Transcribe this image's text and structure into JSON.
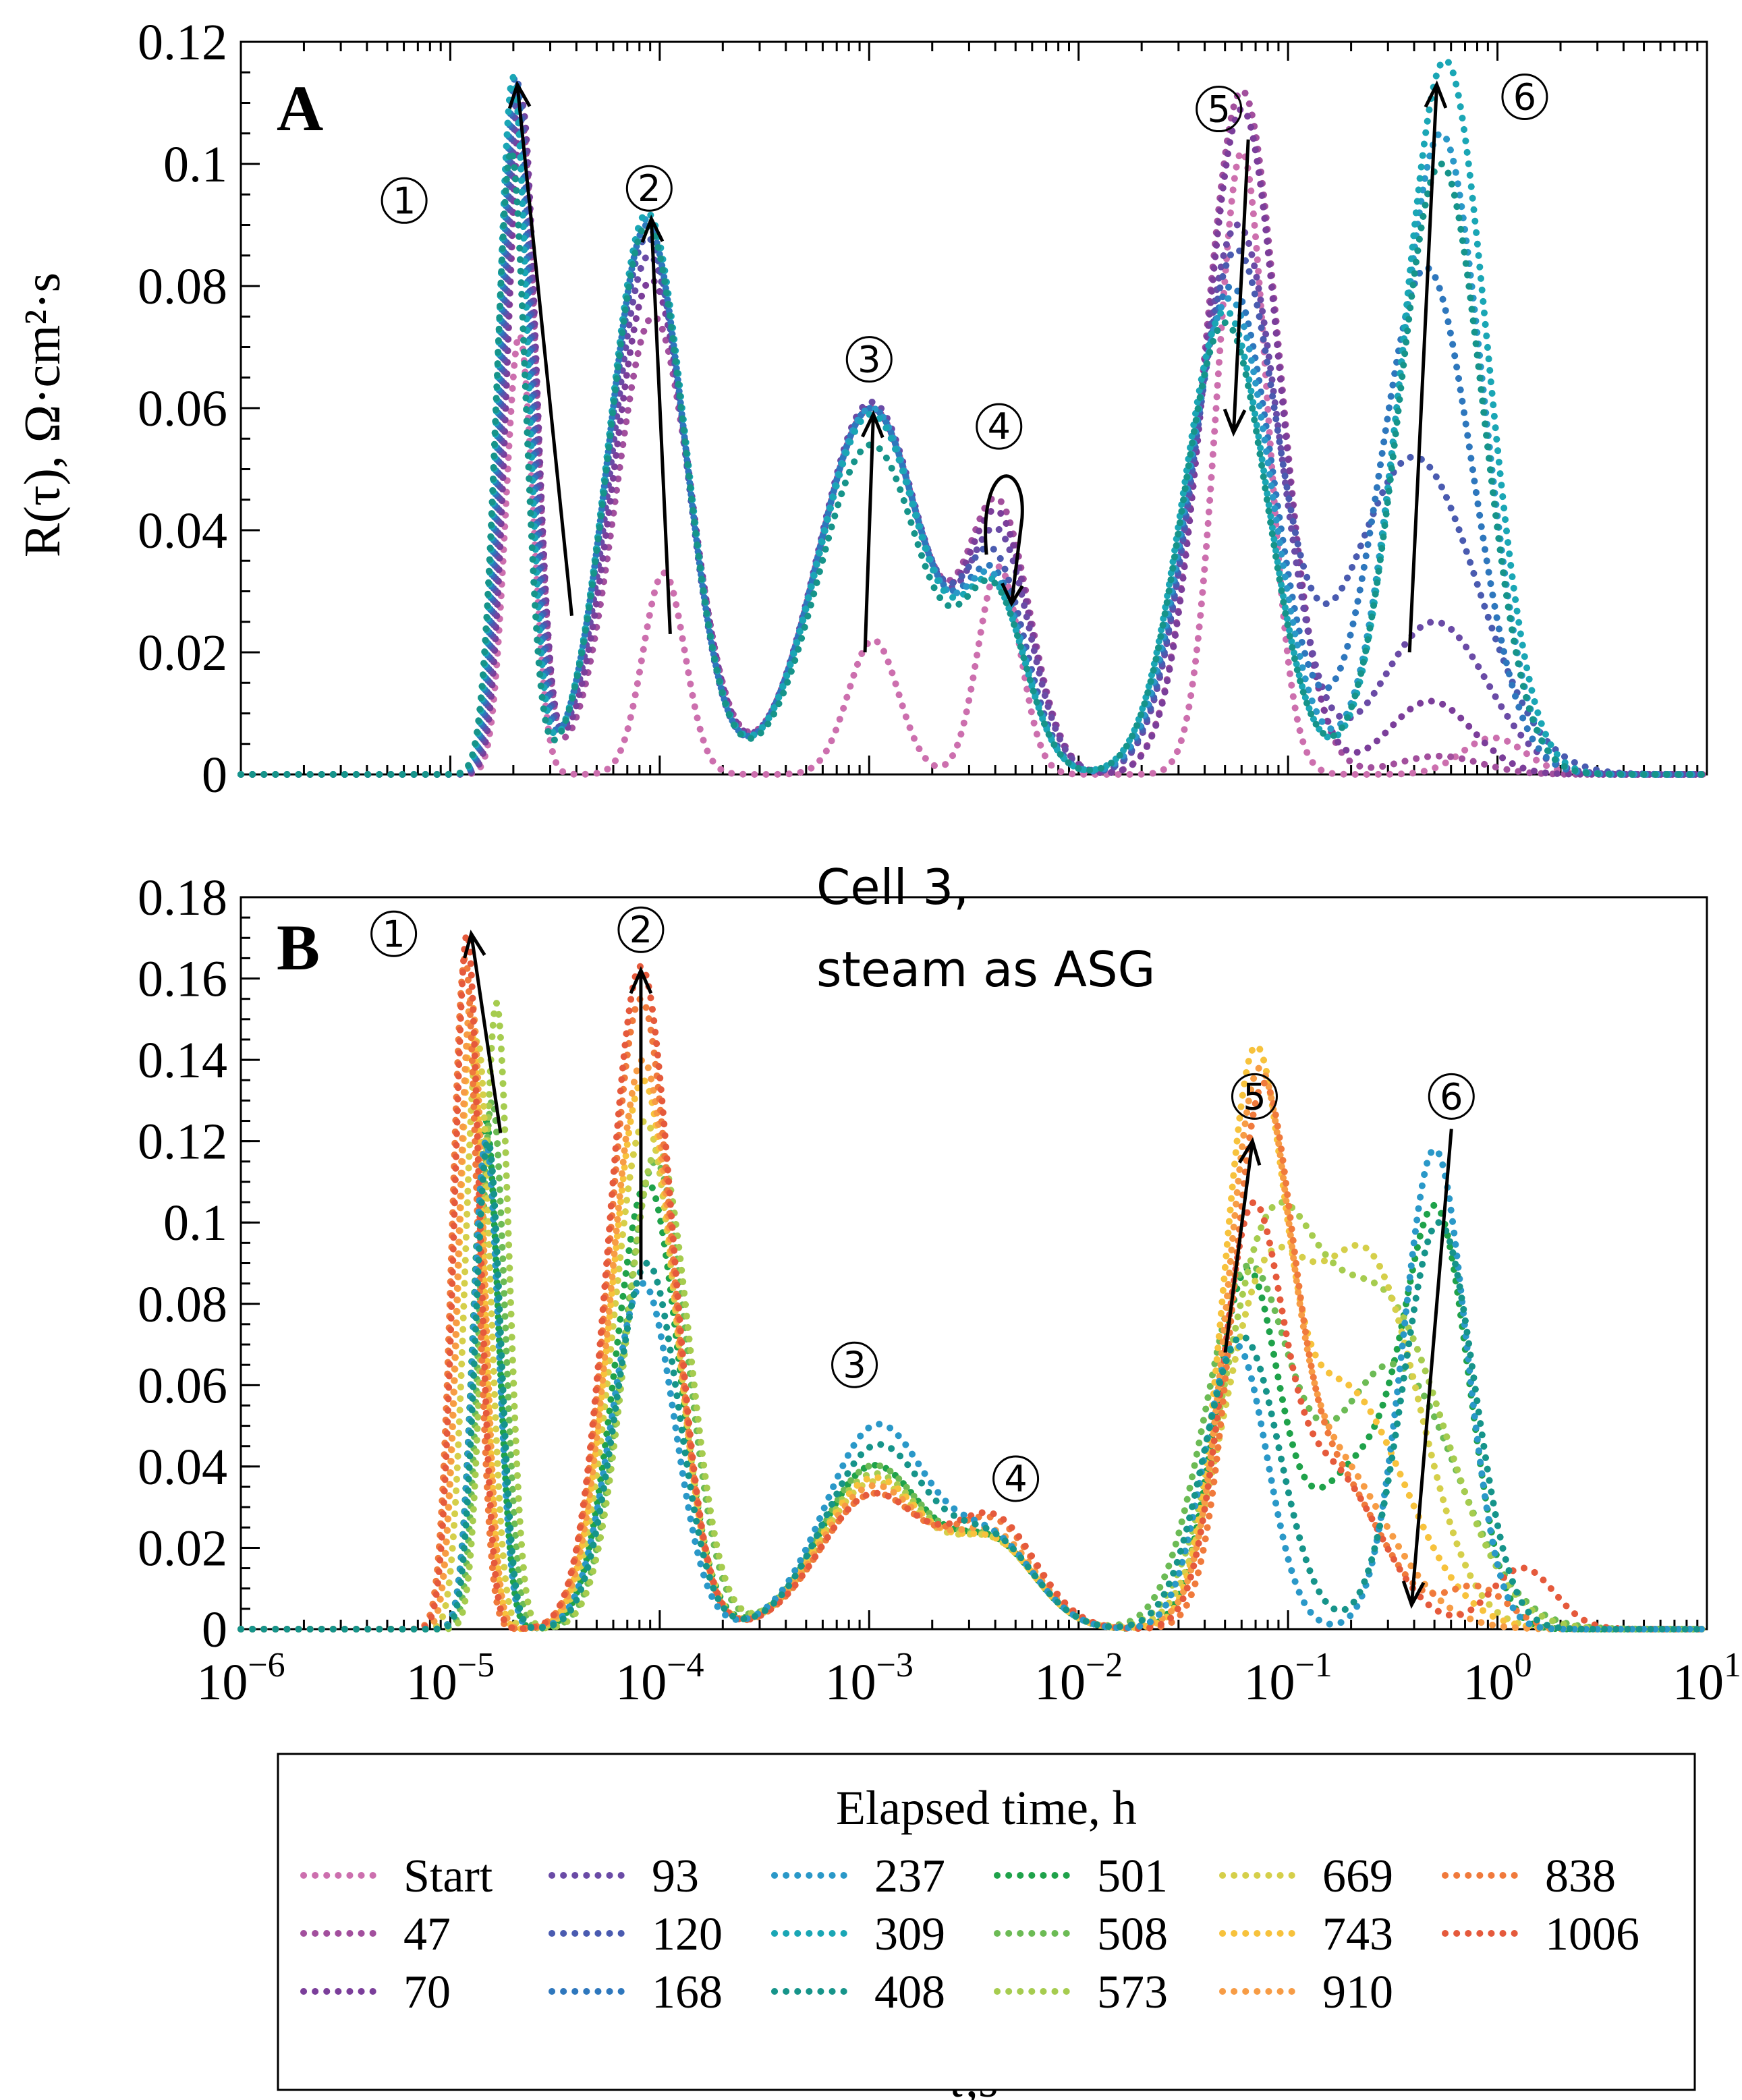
{
  "chart_data": [
    {
      "panel": "A",
      "type": "line",
      "ylabel": "R(τ), Ω·cm²·s",
      "ylim": [
        0,
        0.12
      ],
      "yticks": [
        {
          "v": 0,
          "label": "0"
        },
        {
          "v": 0.02,
          "label": "0.02"
        },
        {
          "v": 0.04,
          "label": "0.04"
        },
        {
          "v": 0.06,
          "label": "0.06"
        },
        {
          "v": 0.08,
          "label": "0.08"
        },
        {
          "v": 0.1,
          "label": "0.1"
        },
        {
          "v": 0.12,
          "label": "0.12"
        }
      ],
      "xscale": "log",
      "xlim": [
        -6,
        1
      ],
      "annotations": [
        {
          "text": "1",
          "x": -5.22,
          "y": 0.094
        },
        {
          "text": "2",
          "x": -4.05,
          "y": 0.096
        },
        {
          "text": "3",
          "x": -3.0,
          "y": 0.068
        },
        {
          "text": "4",
          "x": -2.38,
          "y": 0.057
        },
        {
          "text": "5",
          "x": -1.33,
          "y": 0.109
        },
        {
          "text": "6",
          "x": 0.13,
          "y": 0.111
        }
      ],
      "arrows": [
        {
          "from": [
            -4.42,
            0.026
          ],
          "to": [
            -4.68,
            0.113
          ]
        },
        {
          "from": [
            -3.95,
            0.023
          ],
          "to": [
            -4.04,
            0.091
          ]
        },
        {
          "from": [
            -3.02,
            0.02
          ],
          "to": [
            -2.98,
            0.059
          ]
        },
        {
          "from": [
            -1.19,
            0.104
          ],
          "to": [
            -1.26,
            0.056
          ]
        },
        {
          "from": [
            -0.42,
            0.02
          ],
          "to": [
            -0.29,
            0.113
          ]
        }
      ],
      "series": [
        {
          "name": "Start",
          "color": "#cc6fae",
          "peaks": [
            [
              -4.67,
              0.072,
              0.065
            ],
            [
              -3.98,
              0.033,
              0.1
            ],
            [
              -2.98,
              0.022,
              0.12
            ],
            [
              -2.38,
              0.034,
              0.1
            ],
            [
              -1.22,
              0.102,
              0.12
            ],
            [
              -0.02,
              0.006,
              0.15
            ]
          ]
        },
        {
          "name": "47",
          "color": "#a24f9d",
          "peaks": [
            [
              -4.66,
              0.107,
              0.07
            ],
            [
              -4.03,
              0.075,
              0.18
            ],
            [
              -2.99,
              0.06,
              0.25
            ],
            [
              -2.38,
              0.042,
              0.15
            ],
            [
              -1.22,
              0.112,
              0.18
            ],
            [
              -0.28,
              0.003,
              0.2
            ]
          ]
        },
        {
          "name": "70",
          "color": "#7b3e9a",
          "peaks": [
            [
              -4.66,
              0.11,
              0.07
            ],
            [
              -4.04,
              0.081,
              0.18
            ],
            [
              -2.99,
              0.06,
              0.25
            ],
            [
              -2.38,
              0.04,
              0.15
            ],
            [
              -1.22,
              0.109,
              0.18
            ],
            [
              -0.32,
              0.012,
              0.2
            ]
          ]
        },
        {
          "name": "93",
          "color": "#6a4ba6",
          "peaks": [
            [
              -4.67,
              0.112,
              0.07
            ],
            [
              -4.05,
              0.085,
              0.18
            ],
            [
              -2.99,
              0.061,
              0.25
            ],
            [
              -2.38,
              0.037,
              0.15
            ],
            [
              -1.24,
              0.09,
              0.2
            ],
            [
              -0.3,
              0.025,
              0.25
            ]
          ]
        },
        {
          "name": "120",
          "color": "#4a5bb0",
          "peaks": [
            [
              -4.68,
              0.113,
              0.07
            ],
            [
              -4.06,
              0.088,
              0.18
            ],
            [
              -2.99,
              0.06,
              0.25
            ],
            [
              -2.4,
              0.033,
              0.15
            ],
            [
              -1.25,
              0.085,
              0.2
            ],
            [
              -0.4,
              0.052,
              0.3
            ]
          ]
        },
        {
          "name": "168",
          "color": "#2e77bd",
          "peaks": [
            [
              -4.69,
              0.114,
              0.07
            ],
            [
              -4.06,
              0.09,
              0.18
            ],
            [
              -2.99,
              0.06,
              0.25
            ],
            [
              -2.4,
              0.03,
              0.15
            ],
            [
              -1.27,
              0.08,
              0.2
            ],
            [
              -0.34,
              0.083,
              0.22
            ]
          ]
        },
        {
          "name": "237",
          "color": "#2a98c8",
          "peaks": [
            [
              -4.7,
              0.114,
              0.07
            ],
            [
              -4.06,
              0.091,
              0.18
            ],
            [
              -2.99,
              0.06,
              0.25
            ],
            [
              -2.4,
              0.029,
              0.15
            ],
            [
              -1.28,
              0.078,
              0.2
            ],
            [
              -0.27,
              0.105,
              0.2
            ]
          ]
        },
        {
          "name": "309",
          "color": "#1aa6b5",
          "peaks": [
            [
              -4.7,
              0.114,
              0.07
            ],
            [
              -4.06,
              0.092,
              0.18
            ],
            [
              -2.99,
              0.059,
              0.25
            ],
            [
              -2.4,
              0.028,
              0.15
            ],
            [
              -1.3,
              0.076,
              0.2
            ],
            [
              -0.25,
              0.117,
              0.2
            ]
          ]
        },
        {
          "name": "408",
          "color": "#16948a",
          "peaks": [
            [
              -4.71,
              0.102,
              0.07
            ],
            [
              -4.06,
              0.09,
              0.18
            ],
            [
              -2.99,
              0.054,
              0.25
            ],
            [
              -2.4,
              0.028,
              0.15
            ],
            [
              -1.3,
              0.074,
              0.2
            ],
            [
              -0.27,
              0.1,
              0.2
            ]
          ]
        }
      ]
    },
    {
      "panel": "B",
      "type": "line",
      "ylabel": "",
      "ylim": [
        0,
        0.18
      ],
      "yticks": [
        {
          "v": 0,
          "label": "0"
        },
        {
          "v": 0.02,
          "label": "0.02"
        },
        {
          "v": 0.04,
          "label": "0.04"
        },
        {
          "v": 0.06,
          "label": "0.06"
        },
        {
          "v": 0.08,
          "label": "0.08"
        },
        {
          "v": 0.1,
          "label": "0.1"
        },
        {
          "v": 0.12,
          "label": "0.12"
        },
        {
          "v": 0.14,
          "label": "0.14"
        },
        {
          "v": 0.16,
          "label": "0.16"
        },
        {
          "v": 0.18,
          "label": "0.18"
        }
      ],
      "xscale": "log",
      "xlim": [
        -6,
        1
      ],
      "xlabel": "τ,s",
      "xticks": [
        {
          "v": -6,
          "base": "10",
          "exp": "−6"
        },
        {
          "v": -5,
          "base": "10",
          "exp": "−5"
        },
        {
          "v": -4,
          "base": "10",
          "exp": "−4"
        },
        {
          "v": -3,
          "base": "10",
          "exp": "−3"
        },
        {
          "v": -2,
          "base": "10",
          "exp": "−2"
        },
        {
          "v": -1,
          "base": "10",
          "exp": "−1"
        },
        {
          "v": 0,
          "base": "10",
          "exp": "0"
        },
        {
          "v": 1,
          "base": "10",
          "exp": "1"
        }
      ],
      "note": [
        "Cell 3,",
        "steam as ASG"
      ],
      "annotations": [
        {
          "text": "1",
          "x": -5.27,
          "y": 0.171
        },
        {
          "text": "2",
          "x": -4.09,
          "y": 0.172
        },
        {
          "text": "3",
          "x": -3.07,
          "y": 0.065
        },
        {
          "text": "4",
          "x": -2.3,
          "y": 0.037
        },
        {
          "text": "5",
          "x": -1.16,
          "y": 0.131
        },
        {
          "text": "6",
          "x": -0.22,
          "y": 0.131
        }
      ],
      "arrows": [
        {
          "from": [
            -4.76,
            0.122
          ],
          "to": [
            -4.9,
            0.171
          ]
        },
        {
          "from": [
            -4.09,
            0.086
          ],
          "to": [
            -4.09,
            0.162
          ]
        },
        {
          "from": [
            -1.3,
            0.068
          ],
          "to": [
            -1.17,
            0.12
          ]
        },
        {
          "from": [
            -0.22,
            0.123
          ],
          "to": [
            -0.41,
            0.006
          ]
        }
      ],
      "series": [
        {
          "name": "501",
          "color": "#1fa24a",
          "peaks": [
            [
              -4.83,
              0.125,
              0.06
            ],
            [
              -4.06,
              0.11,
              0.15
            ],
            [
              -2.98,
              0.04,
              0.25
            ],
            [
              -2.4,
              0.02,
              0.2
            ],
            [
              -1.2,
              0.085,
              0.15
            ],
            [
              -0.65,
              0.04,
              0.25
            ],
            [
              -0.28,
              0.09,
              0.15
            ]
          ]
        },
        {
          "name": "508",
          "color": "#6cbb55",
          "peaks": [
            [
              -4.8,
              0.13,
              0.06
            ],
            [
              -4.02,
              0.115,
              0.15
            ],
            [
              -2.98,
              0.04,
              0.25
            ],
            [
              -2.4,
              0.02,
              0.2
            ],
            [
              -1.2,
              0.085,
              0.2
            ],
            [
              -0.5,
              0.065,
              0.3
            ]
          ]
        },
        {
          "name": "573",
          "color": "#a6cc4f",
          "peaks": [
            [
              -4.78,
              0.154,
              0.06
            ],
            [
              -4.01,
              0.118,
              0.15
            ],
            [
              -2.98,
              0.038,
              0.25
            ],
            [
              -2.4,
              0.02,
              0.2
            ],
            [
              -1.1,
              0.087,
              0.22
            ],
            [
              -0.55,
              0.08,
              0.3
            ]
          ]
        },
        {
          "name": "669",
          "color": "#d5cf4a",
          "peaks": [
            [
              -4.87,
              0.145,
              0.06
            ],
            [
              -4.07,
              0.125,
              0.15
            ],
            [
              -2.98,
              0.036,
              0.25
            ],
            [
              -2.4,
              0.02,
              0.2
            ],
            [
              -1.12,
              0.078,
              0.2
            ],
            [
              -0.62,
              0.09,
              0.25
            ]
          ]
        },
        {
          "name": "743",
          "color": "#f7c23c",
          "peaks": [
            [
              -4.9,
              0.147,
              0.06
            ],
            [
              -4.08,
              0.135,
              0.15
            ],
            [
              -2.98,
              0.037,
              0.25
            ],
            [
              -2.4,
              0.02,
              0.2
            ],
            [
              -1.17,
              0.12,
              0.14
            ],
            [
              -0.75,
              0.06,
              0.3
            ]
          ]
        },
        {
          "name": "910",
          "color": "#f79c45",
          "peaks": [
            [
              -4.9,
              0.155,
              0.06
            ],
            [
              -4.08,
              0.14,
              0.15
            ],
            [
              -2.98,
              0.035,
              0.25
            ],
            [
              -2.4,
              0.022,
              0.2
            ],
            [
              -1.15,
              0.11,
              0.14
            ],
            [
              -0.85,
              0.045,
              0.3
            ]
          ]
        },
        {
          "name": "838",
          "color": "#f07a3c",
          "peaks": [
            [
              -4.93,
              0.165,
              0.06
            ],
            [
              -4.09,
              0.155,
              0.15
            ],
            [
              -2.98,
              0.033,
              0.25
            ],
            [
              -2.4,
              0.025,
              0.2
            ],
            [
              -1.13,
              0.115,
              0.14
            ],
            [
              -0.82,
              0.04,
              0.25
            ],
            [
              -0.1,
              0.01,
              0.15
            ]
          ]
        },
        {
          "name": "1006",
          "color": "#e55a3c",
          "peaks": [
            [
              -4.92,
              0.171,
              0.06
            ],
            [
              -4.09,
              0.163,
              0.15
            ],
            [
              -2.98,
              0.033,
              0.25
            ],
            [
              -2.4,
              0.026,
              0.2
            ],
            [
              -1.18,
              0.09,
              0.14
            ],
            [
              -0.82,
              0.04,
              0.25
            ],
            [
              0.12,
              0.015,
              0.15
            ]
          ]
        },
        {
          "name": "237",
          "color": "#2a98c8",
          "peaks": [
            [
              -4.83,
              0.12,
              0.06
            ],
            [
              -4.08,
              0.085,
              0.15
            ],
            [
              -2.96,
              0.05,
              0.25
            ],
            [
              -2.4,
              0.02,
              0.2
            ],
            [
              -1.25,
              0.07,
              0.15
            ],
            [
              -0.3,
              0.118,
              0.15
            ]
          ]
        },
        {
          "name": "408",
          "color": "#16948a",
          "peaks": [
            [
              -4.82,
              0.12,
              0.06
            ],
            [
              -4.06,
              0.09,
              0.15
            ],
            [
              -2.96,
              0.045,
              0.25
            ],
            [
              -2.4,
              0.02,
              0.2
            ],
            [
              -1.22,
              0.072,
              0.18
            ],
            [
              -0.28,
              0.1,
              0.17
            ]
          ]
        }
      ]
    }
  ],
  "legend": {
    "title": "Elapsed time, h",
    "columns": [
      [
        {
          "label": "Start",
          "color": "#cc6fae"
        },
        {
          "label": "47",
          "color": "#a24f9d"
        },
        {
          "label": "70",
          "color": "#7b3e9a"
        }
      ],
      [
        {
          "label": "93",
          "color": "#6a4ba6"
        },
        {
          "label": "120",
          "color": "#4a5bb0"
        },
        {
          "label": "168",
          "color": "#2e77bd"
        }
      ],
      [
        {
          "label": "237",
          "color": "#2a98c8"
        },
        {
          "label": "309",
          "color": "#1aa6b5"
        },
        {
          "label": "408",
          "color": "#16948a"
        }
      ],
      [
        {
          "label": "501",
          "color": "#1fa24a"
        },
        {
          "label": "508",
          "color": "#6cbb55"
        },
        {
          "label": "573",
          "color": "#a6cc4f"
        }
      ],
      [
        {
          "label": "669",
          "color": "#d5cf4a"
        },
        {
          "label": "743",
          "color": "#f7c23c"
        },
        {
          "label": "910",
          "color": "#f79c45"
        }
      ],
      [
        {
          "label": "838",
          "color": "#f07a3c"
        },
        {
          "label": "1006",
          "color": "#e55a3c"
        }
      ]
    ]
  }
}
